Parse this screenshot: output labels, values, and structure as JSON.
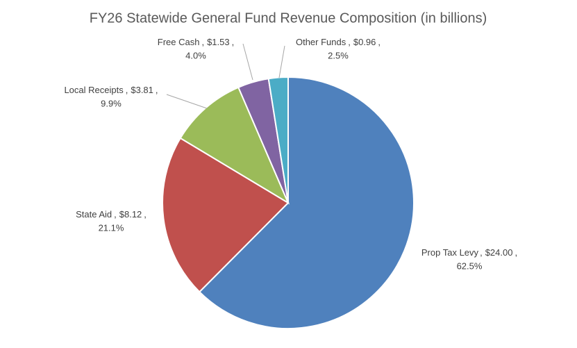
{
  "chart_data": {
    "type": "pie",
    "title": "FY26 Statewide General Fund Revenue Composition (in billions)",
    "categories": [
      "Prop Tax Levy",
      "State Aid",
      "Local Receipts",
      "Free Cash",
      "Other Funds"
    ],
    "values": [
      24.0,
      8.12,
      3.81,
      1.53,
      0.96
    ],
    "value_labels": [
      "$24.00",
      "$8.12",
      "$3.81",
      "$1.53",
      "$0.96"
    ],
    "percent_labels": [
      "62.5%",
      "21.1%",
      "9.9%",
      "4.0%",
      "2.5%"
    ],
    "label_separator": ",",
    "colors": [
      "#4f81bd",
      "#c0504d",
      "#9bbb59",
      "#8064a2",
      "#4bacc6"
    ]
  }
}
